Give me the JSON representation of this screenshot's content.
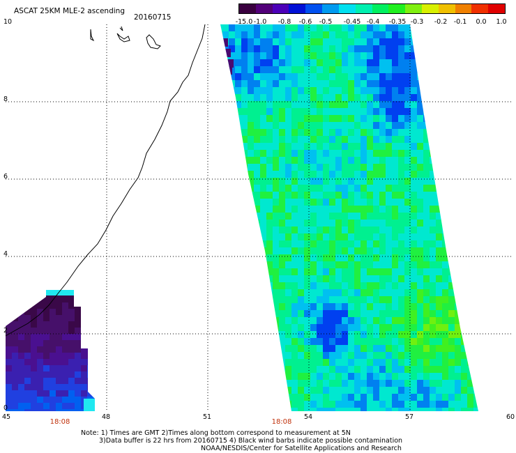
{
  "header": {
    "title": "ASCAT 25KM MLE-2 ascending",
    "date": "20160715"
  },
  "colorbar": {
    "colors": [
      "#3a003f",
      "#520079",
      "#4c00b8",
      "#0010d6",
      "#0050f0",
      "#009af0",
      "#00e0f0",
      "#00f0b0",
      "#00f060",
      "#20f020",
      "#80f010",
      "#d8f000",
      "#f0c000",
      "#f08000",
      "#f03000",
      "#e00000"
    ],
    "labels": [
      "-15.0",
      "-1.0",
      "-0.8",
      "-0.6",
      "-0.5",
      "-0.45",
      "-0.4",
      "-0.35",
      "-0.3",
      "-0.2",
      "-0.1",
      "0.0",
      "1.0"
    ]
  },
  "axes": {
    "x_labels": [
      "45",
      "48",
      "51",
      "54",
      "57",
      "60"
    ],
    "y_labels": [
      "0",
      "2",
      "4",
      "6",
      "8",
      "10"
    ],
    "time_labels": [
      "18:08",
      "18:08"
    ]
  },
  "notes": {
    "line1": "Note: 1) Times are GMT 2)Times along bottom correspond to measurement at 5N",
    "line2": "3)Data buffer is 22 hrs from 20160715 4) Black wind barbs indicate possible contamination",
    "line3": "NOAA/NESDIS/Center for Satellite Applications and Research"
  }
}
